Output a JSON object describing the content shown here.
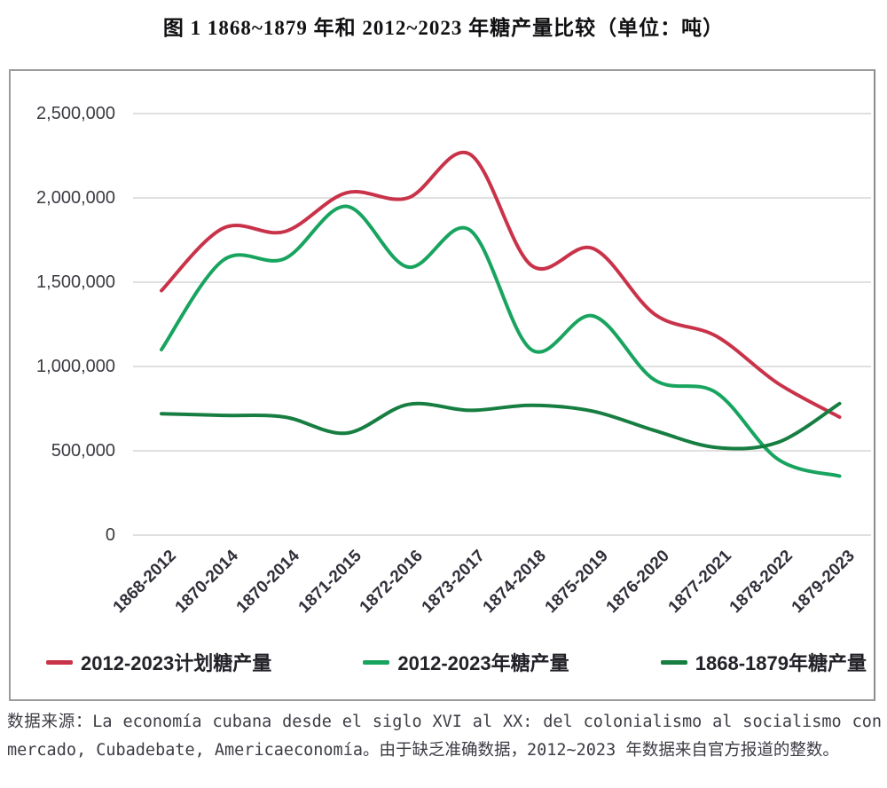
{
  "title": "图 1  1868~1879 年和 2012~2023 年糖产量比较（单位：吨）",
  "source_note": "数据来源：La economía cubana desde el siglo XVI al XX: del colonialismo al socialismo con mercado, Cubadebate, Americaeconomía。由于缺乏准确数据，2012~2023 年数据来自官方报道的整数。",
  "chart_data": {
    "type": "line",
    "title": "图 1  1868~1879 年和 2012~2023 年糖产量比较（单位：吨）",
    "xlabel": "",
    "ylabel": "",
    "ylim": [
      0,
      2500000
    ],
    "grid": "horizontal",
    "legend_position": "bottom",
    "line_style": "smooth",
    "yticks": [
      0,
      500000,
      1000000,
      1500000,
      2000000,
      2500000
    ],
    "ytick_labels": [
      "0",
      "500,000",
      "1,000,000",
      "1,500,000",
      "2,000,000",
      "2,500,000"
    ],
    "categories": [
      "1868-2012",
      "1870-2014",
      "1870-2014",
      "1871-2015",
      "1872-2016",
      "1873-2017",
      "1874-2018",
      "1875-2019",
      "1876-2020",
      "1877-2021",
      "1878-2022",
      "1879-2023"
    ],
    "series": [
      {
        "name": "2012-2023计划糖产量",
        "color": "#c9334a",
        "values": [
          1450000,
          1820000,
          1800000,
          2030000,
          2000000,
          2260000,
          1600000,
          1700000,
          1310000,
          1180000,
          900000,
          700000
        ]
      },
      {
        "name": "2012-2023年糖产量",
        "color": "#18a45f",
        "values": [
          1100000,
          1630000,
          1640000,
          1950000,
          1590000,
          1810000,
          1100000,
          1300000,
          920000,
          845000,
          450000,
          350000
        ]
      },
      {
        "name": "1868-1879年糖产量",
        "color": "#177e41",
        "values": [
          720000,
          710000,
          700000,
          605000,
          775000,
          740000,
          770000,
          735000,
          620000,
          520000,
          550000,
          780000
        ]
      }
    ]
  }
}
